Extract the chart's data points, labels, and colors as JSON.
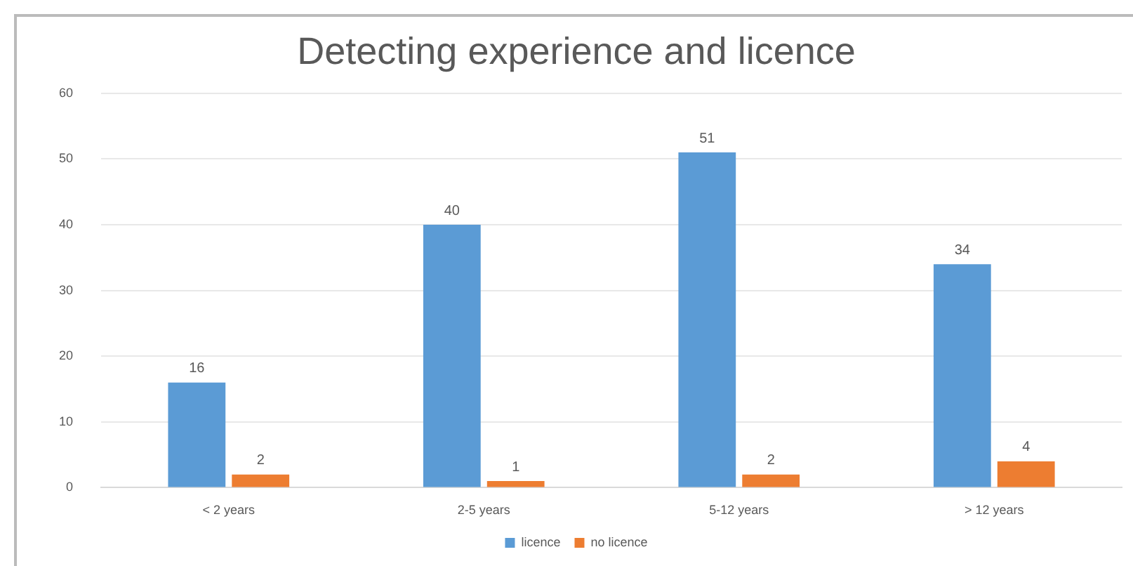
{
  "chart_data": {
    "type": "bar",
    "title": "Detecting experience and licence",
    "categories": [
      "< 2 years",
      "2-5 years",
      "5-12 years",
      "> 12 years"
    ],
    "series": [
      {
        "name": "licence",
        "color": "#5b9bd5",
        "values": [
          16,
          40,
          51,
          34
        ]
      },
      {
        "name": "no licence",
        "color": "#ed7d31",
        "values": [
          2,
          1,
          2,
          4
        ]
      }
    ],
    "ylim": [
      0,
      60
    ],
    "yticks": [
      0,
      10,
      20,
      30,
      40,
      50,
      60
    ],
    "grid": "y",
    "legend": "bottom",
    "data_labels": true
  }
}
